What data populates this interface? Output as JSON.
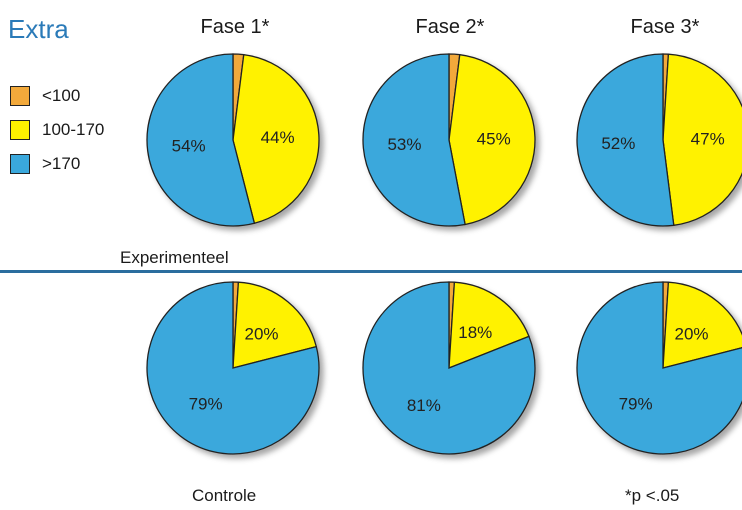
{
  "header": {
    "title": "Extra"
  },
  "colors": {
    "lt100": "#f2a93b",
    "mid": "#fff200",
    "gt170": "#3aa8dc",
    "accent": "#2a7ab8"
  },
  "legend": [
    {
      "label": "<100",
      "color": "#f2a93b"
    },
    {
      "label": "100-170",
      "color": "#fff200"
    },
    {
      "label": ">170",
      "color": "#3aa8dc"
    }
  ],
  "groups": {
    "top": "Experimenteel",
    "bottom": "Controle"
  },
  "footnote": "*p <.05",
  "chart_data": {
    "type": "pie",
    "phases": [
      "Fase 1*",
      "Fase 2*",
      "Fase 3*"
    ],
    "categories": [
      "<100",
      "100-170",
      ">170"
    ],
    "series": [
      {
        "name": "Experimenteel",
        "pies": [
          {
            "phase": "Fase 1*",
            "values": [
              2,
              44,
              54
            ],
            "labels": [
              "",
              "44%",
              "54%"
            ]
          },
          {
            "phase": "Fase 2*",
            "values": [
              2,
              45,
              53
            ],
            "labels": [
              "",
              "45%",
              "53%"
            ]
          },
          {
            "phase": "Fase 3*",
            "values": [
              1,
              47,
              52
            ],
            "labels": [
              "",
              "47%",
              "52%"
            ]
          }
        ]
      },
      {
        "name": "Controle",
        "pies": [
          {
            "phase": "Fase 1*",
            "values": [
              1,
              20,
              79
            ],
            "labels": [
              "",
              "20%",
              "79%"
            ]
          },
          {
            "phase": "Fase 2*",
            "values": [
              1,
              18,
              81
            ],
            "labels": [
              "",
              "18%",
              "81%"
            ]
          },
          {
            "phase": "Fase 3*",
            "values": [
              1,
              20,
              79
            ],
            "labels": [
              "",
              "20%",
              "79%"
            ]
          }
        ]
      }
    ]
  }
}
